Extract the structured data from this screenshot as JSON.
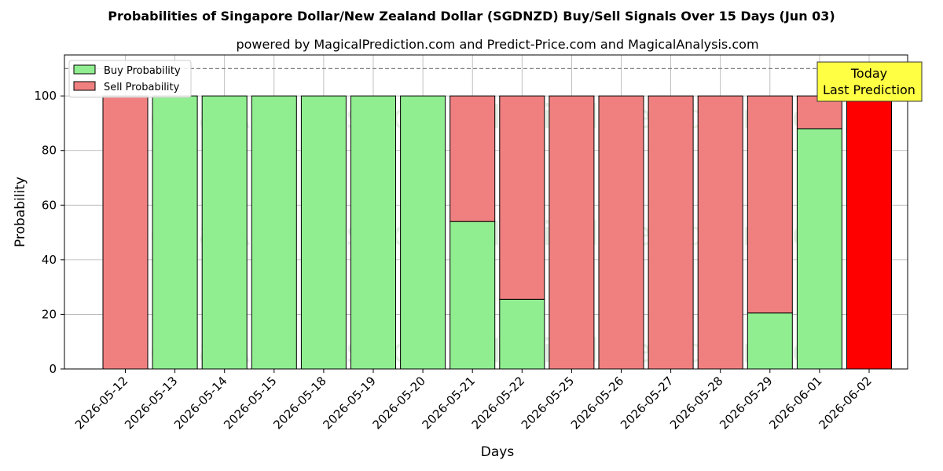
{
  "title": "Probabilities of Singapore Dollar/New Zealand Dollar (SGDNZD) Buy/Sell Signals Over 15 Days (Jun 03)",
  "subtitle": "powered by MagicalPrediction.com and Predict-Price.com and MagicalAnalysis.com",
  "watermarks": [
    "MagicalAnalysis.com",
    "MagicalPrediction.com"
  ],
  "annotation": {
    "line1": "Today",
    "line2": "Last Prediction"
  },
  "colors": {
    "buy": "#90ee90",
    "sell": "#f08080",
    "today": "#ff0000",
    "annotation_bg": "#ffff44",
    "reference_line": "#808080",
    "grid": "#b0b0b0"
  },
  "chart_data": {
    "type": "bar",
    "stacked": true,
    "xlabel": "Days",
    "ylabel": "Probability",
    "ylim": [
      0,
      115
    ],
    "yticks": [
      0,
      20,
      40,
      60,
      80,
      100
    ],
    "reference_line_y": 110,
    "grid": true,
    "legend_position": "top-left",
    "categories": [
      "2026-05-12",
      "2026-05-13",
      "2026-05-14",
      "2026-05-15",
      "2026-05-18",
      "2026-05-19",
      "2026-05-20",
      "2026-05-21",
      "2026-05-22",
      "2026-05-25",
      "2026-05-26",
      "2026-05-27",
      "2026-05-28",
      "2026-05-29",
      "2026-06-01",
      "2026-06-02"
    ],
    "series": [
      {
        "name": "Buy Probability",
        "values": [
          0,
          100,
          100,
          100,
          100,
          100,
          100,
          54,
          25.5,
          0,
          0,
          0,
          0,
          20.5,
          88,
          0
        ]
      },
      {
        "name": "Sell Probability",
        "values": [
          100,
          0,
          0,
          0,
          0,
          0,
          0,
          46,
          74.5,
          100,
          100,
          100,
          100,
          79.5,
          12,
          100
        ]
      }
    ],
    "today_index": 15
  }
}
